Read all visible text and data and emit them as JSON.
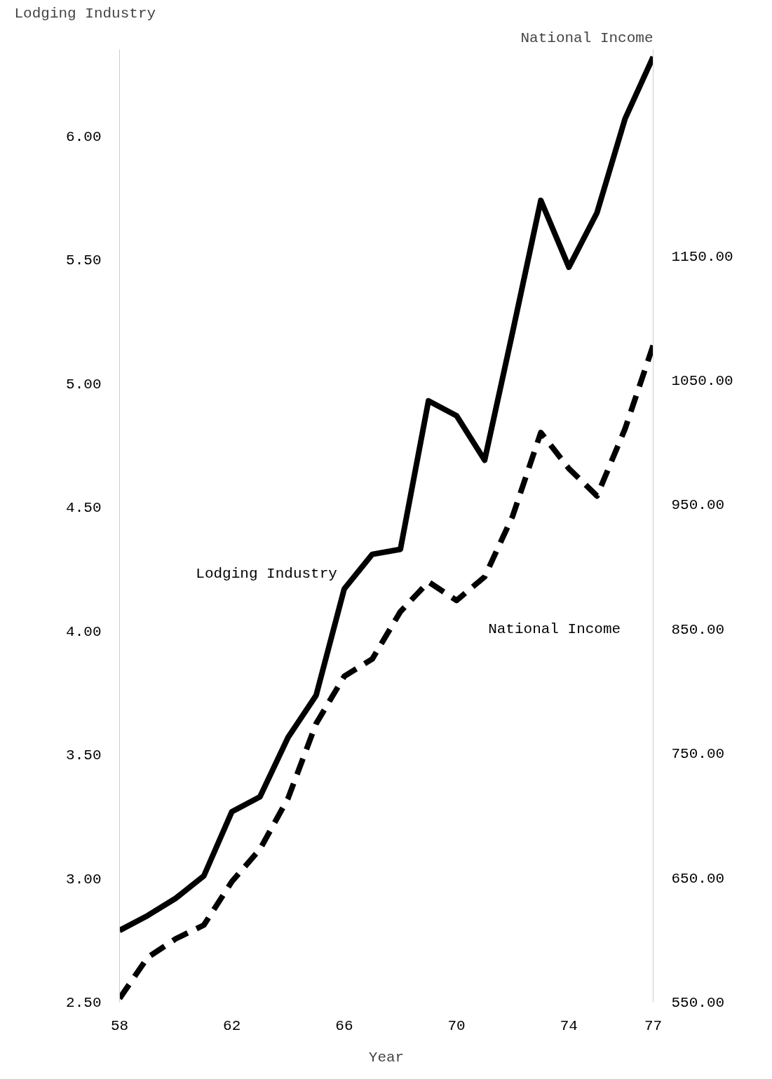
{
  "chart_data": {
    "type": "line",
    "xlabel": "Year",
    "ylabel": "Lodging Industry",
    "y2label": "National Income",
    "x": [
      1958,
      1959,
      1960,
      1961,
      1962,
      1963,
      1964,
      1965,
      1966,
      1967,
      1968,
      1969,
      1970,
      1971,
      1972,
      1973,
      1974,
      1975,
      1976,
      1977
    ],
    "series": [
      {
        "name": "Lodging Industry",
        "color": "#000000",
        "line_style": "solid",
        "values": [
          2.79,
          2.85,
          2.92,
          3.01,
          3.27,
          3.33,
          3.57,
          3.74,
          4.17,
          4.31,
          4.33,
          4.93,
          4.87,
          4.69,
          5.21,
          5.74,
          5.47,
          5.69,
          6.07,
          6.32
        ]
      },
      {
        "name": "National Income",
        "color": "#000000",
        "line_style": "dashed",
        "axis": "y2",
        "values": [
          553,
          586,
          601,
          612,
          647,
          673,
          714,
          774,
          812,
          826,
          864,
          888,
          873,
          892,
          941,
          1008,
          979,
          957,
          1011,
          1078
        ]
      }
    ],
    "xlim": [
      1958,
      1977
    ],
    "xticks": [
      {
        "value": 1958,
        "label": "58"
      },
      {
        "value": 1962,
        "label": "62"
      },
      {
        "value": 1966,
        "label": "66"
      },
      {
        "value": 1970,
        "label": "70"
      },
      {
        "value": 1974,
        "label": "74"
      },
      {
        "value": 1977,
        "label": "77"
      }
    ],
    "ylim": [
      2.5,
      6.35
    ],
    "yticks": [
      {
        "value": 2.5,
        "label": "2.50"
      },
      {
        "value": 3.0,
        "label": "3.00"
      },
      {
        "value": 3.5,
        "label": "3.50"
      },
      {
        "value": 4.0,
        "label": "4.00"
      },
      {
        "value": 4.5,
        "label": "4.50"
      },
      {
        "value": 5.0,
        "label": "5.00"
      },
      {
        "value": 5.5,
        "label": "5.50"
      },
      {
        "value": 6.0,
        "label": "6.00"
      }
    ],
    "y2lim": [
      550,
      1316
    ],
    "y2ticks": [
      {
        "value": 550,
        "label": "550.00"
      },
      {
        "value": 650,
        "label": "650.00"
      },
      {
        "value": 750,
        "label": "750.00"
      },
      {
        "value": 850,
        "label": "850.00"
      },
      {
        "value": 950,
        "label": "950.00"
      },
      {
        "value": 1050,
        "label": "1050.00"
      },
      {
        "value": 1150,
        "label": "1150.00"
      }
    ],
    "grid": false
  }
}
